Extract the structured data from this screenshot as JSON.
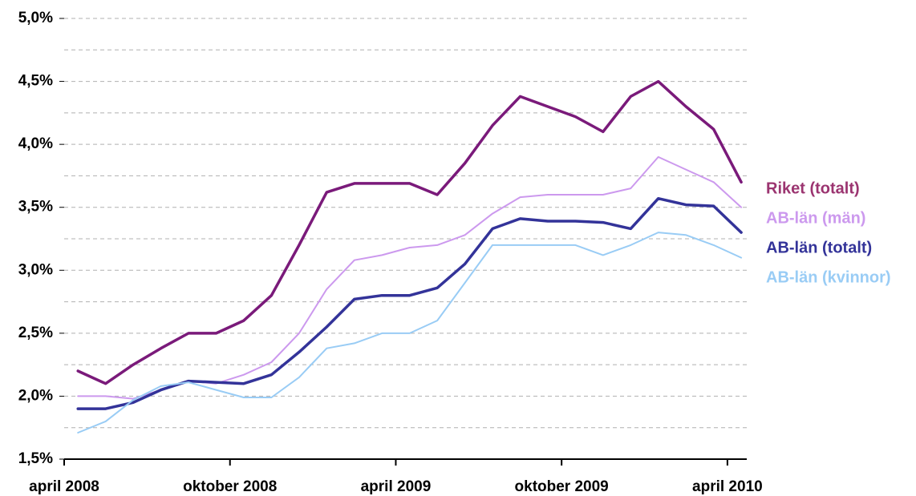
{
  "chart_data": {
    "type": "line",
    "xlim": [
      0,
      24.7
    ],
    "xticks": [
      {
        "value": 0,
        "label": "april 2008"
      },
      {
        "value": 6,
        "label": "oktober 2008"
      },
      {
        "value": 12,
        "label": "april 2009"
      },
      {
        "value": 18,
        "label": "oktober 2009"
      },
      {
        "value": 24,
        "label": "april 2010"
      }
    ],
    "ylim": [
      1.5,
      5.0
    ],
    "yticks": [
      {
        "value": 1.5,
        "label": "1,5%"
      },
      {
        "value": 2.0,
        "label": "2,0%"
      },
      {
        "value": 2.5,
        "label": "2,5%"
      },
      {
        "value": 3.0,
        "label": "3,0%"
      },
      {
        "value": 3.5,
        "label": "3,5%"
      },
      {
        "value": 4.0,
        "label": "4,0%"
      },
      {
        "value": 4.5,
        "label": "4,5%"
      },
      {
        "value": 5.0,
        "label": "5,0%"
      }
    ],
    "ygrid": [
      1.75,
      2.0,
      2.25,
      2.5,
      2.75,
      3.0,
      3.25,
      3.5,
      3.75,
      4.0,
      4.25,
      4.5,
      4.75,
      5.0
    ],
    "grid": true,
    "legend": "right",
    "x": [
      0.5,
      1.5,
      2.5,
      3.5,
      4.5,
      5.5,
      6.5,
      7.5,
      8.5,
      9.5,
      10.5,
      11.5,
      12.5,
      13.5,
      14.5,
      15.5,
      16.5,
      17.5,
      18.5,
      19.5,
      20.5,
      21.5,
      22.5,
      23.5,
      24.5
    ],
    "series": [
      {
        "name": "Riket (totalt)",
        "color": "#7a1a7a",
        "label_color": "#9b3470",
        "width": 3.5,
        "values": [
          2.2,
          2.1,
          2.25,
          2.38,
          2.5,
          2.5,
          2.6,
          2.8,
          3.2,
          3.62,
          3.69,
          3.69,
          3.69,
          3.6,
          3.85,
          4.15,
          4.38,
          4.3,
          4.22,
          4.1,
          4.38,
          4.5,
          4.3,
          4.12,
          3.7
        ]
      },
      {
        "name": "AB-län (män)",
        "color": "#cc99ee",
        "label_color": "#cc99ee",
        "width": 2,
        "values": [
          2.0,
          2.0,
          1.98,
          2.05,
          2.12,
          2.1,
          2.17,
          2.27,
          2.5,
          2.85,
          3.08,
          3.12,
          3.18,
          3.2,
          3.28,
          3.45,
          3.58,
          3.6,
          3.6,
          3.6,
          3.65,
          3.9,
          3.8,
          3.7,
          3.5
        ]
      },
      {
        "name": "AB-län (totalt)",
        "color": "#333399",
        "label_color": "#333399",
        "width": 3.5,
        "values": [
          1.9,
          1.9,
          1.95,
          2.05,
          2.12,
          2.11,
          2.1,
          2.17,
          2.35,
          2.55,
          2.77,
          2.8,
          2.8,
          2.86,
          3.05,
          3.33,
          3.41,
          3.39,
          3.39,
          3.38,
          3.33,
          3.57,
          3.52,
          3.51,
          3.3
        ]
      },
      {
        "name": "AB-län (kvinnor)",
        "color": "#99ccf5",
        "label_color": "#99ccf5",
        "width": 2,
        "values": [
          1.71,
          1.8,
          1.97,
          2.08,
          2.11,
          2.05,
          1.99,
          1.99,
          2.15,
          2.38,
          2.42,
          2.5,
          2.5,
          2.6,
          2.9,
          3.2,
          3.2,
          3.2,
          3.2,
          3.12,
          3.2,
          3.3,
          3.28,
          3.2,
          3.1
        ]
      }
    ]
  }
}
